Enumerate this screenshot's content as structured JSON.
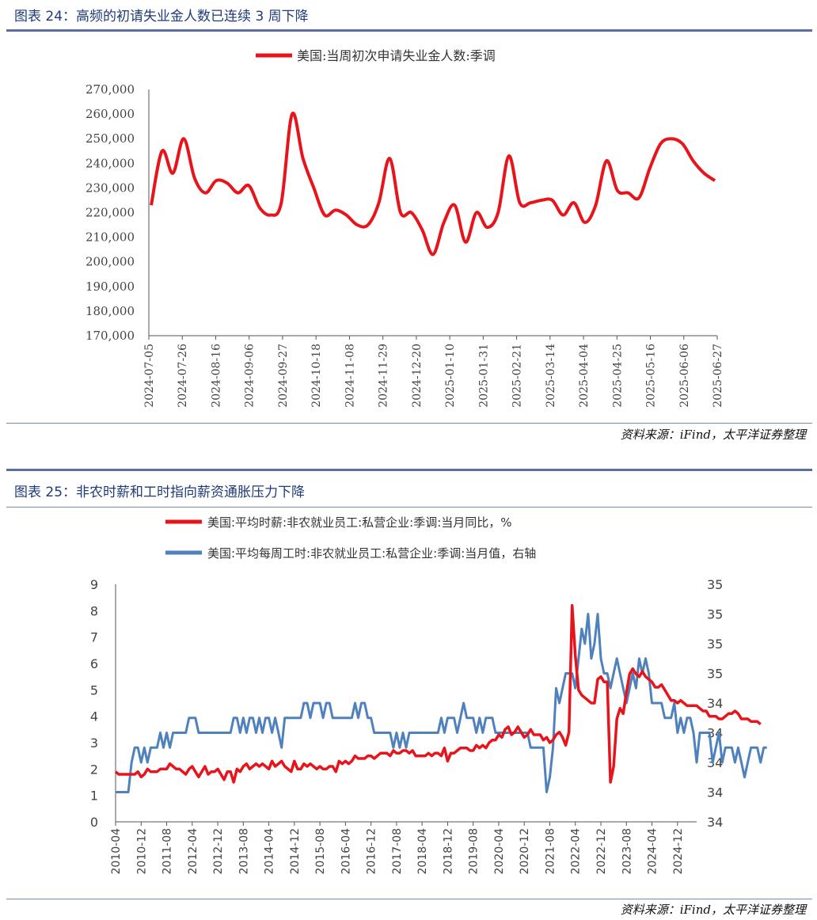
{
  "figures": [
    {
      "title": "图表 24：高频的初请失业金人数已连续 3 周下降",
      "source": "资料来源：iFind，太平洋证券整理"
    },
    {
      "title": "图表 25：非农时薪和工时指向薪资通胀压力下降",
      "source": "资料来源：iFind，太平洋证券整理"
    }
  ],
  "chart_data": [
    {
      "type": "line",
      "legend": [
        "美国:当周初次申请失业金人数:季调"
      ],
      "colors": [
        "#e8141b"
      ],
      "ylim": [
        170000,
        270000
      ],
      "yticks": [
        "170,000",
        "180,000",
        "190,000",
        "200,000",
        "210,000",
        "220,000",
        "230,000",
        "240,000",
        "250,000",
        "260,000",
        "270,000"
      ],
      "xticks": [
        "2024-07-05",
        "2024-07-26",
        "2024-08-16",
        "2024-09-06",
        "2024-09-27",
        "2024-10-18",
        "2024-11-08",
        "2024-11-29",
        "2024-12-20",
        "2025-01-10",
        "2025-01-31",
        "2025-02-21",
        "2025-03-14",
        "2025-04-04",
        "2025-04-25",
        "2025-05-16",
        "2025-06-06",
        "2025-06-27"
      ],
      "series": [
        {
          "name": "美国:当周初次申请失业金人数:季调",
          "values": [
            223000,
            245000,
            236000,
            250000,
            234000,
            228000,
            233000,
            232000,
            228000,
            231000,
            222000,
            219000,
            224000,
            260000,
            242000,
            230000,
            219000,
            221000,
            219000,
            215000,
            215000,
            224000,
            242000,
            220000,
            220000,
            213000,
            203000,
            216000,
            223000,
            208000,
            220000,
            214000,
            220000,
            243000,
            224000,
            224000,
            225000,
            225000,
            219000,
            224000,
            216000,
            223000,
            241000,
            229000,
            228000,
            226000,
            238000,
            248000,
            250000,
            248000,
            241000,
            236000,
            233000
          ]
        }
      ]
    },
    {
      "type": "line",
      "legend": [
        "美国:平均时薪:非农就业员工:私营企业:季调:当月同比，%",
        "美国:平均每周工时:非农就业员工:私营企业:季调:当月值，右轴"
      ],
      "colors": [
        "#e8141b",
        "#4f81bd"
      ],
      "ylim_left": [
        0,
        9
      ],
      "yticks_left": [
        "0",
        "1",
        "2",
        "3",
        "4",
        "5",
        "6",
        "7",
        "8",
        "9"
      ],
      "ylim_right": [
        33.8,
        35.4
      ],
      "yticks_right": [
        "34",
        "34",
        "34",
        "34",
        "34",
        "35",
        "35",
        "35",
        "35"
      ],
      "xticks": [
        "2010-04",
        "2010-12",
        "2011-08",
        "2012-04",
        "2012-12",
        "2013-08",
        "2014-04",
        "2014-12",
        "2015-08",
        "2016-04",
        "2016-12",
        "2017-08",
        "2018-04",
        "2018-12",
        "2019-08",
        "2020-04",
        "2020-12",
        "2021-08",
        "2022-04",
        "2022-12",
        "2023-08",
        "2024-04",
        "2024-12"
      ],
      "x_start": "2010-04",
      "x_end": "2025-06",
      "series": [
        {
          "name": "美国:平均时薪:非农就业员工:私营企业:季调:当月同比，%",
          "axis": "left",
          "monthly_start": "2010-04",
          "values": [
            1.9,
            1.8,
            1.8,
            1.8,
            1.8,
            1.8,
            1.8,
            1.9,
            1.7,
            1.8,
            2.0,
            1.9,
            1.9,
            1.9,
            2.0,
            2.0,
            2.0,
            2.2,
            2.1,
            2.0,
            2.0,
            1.9,
            1.8,
            2.0,
            2.1,
            1.9,
            1.7,
            1.9,
            2.1,
            1.8,
            1.9,
            1.9,
            2.0,
            1.8,
            1.6,
            1.9,
            1.9,
            1.5,
            2.0,
            1.9,
            2.1,
            2.2,
            2.0,
            2.1,
            2.2,
            2.1,
            2.2,
            2.1,
            2.0,
            2.3,
            2.1,
            2.2,
            2.3,
            2.1,
            2.0,
            1.9,
            2.3,
            2.0,
            2.0,
            2.2,
            2.1,
            2.2,
            2.1,
            2.0,
            2.1,
            2.0,
            2.0,
            2.1,
            2.1,
            1.9,
            2.3,
            2.2,
            2.3,
            2.2,
            2.3,
            2.5,
            2.4,
            2.4,
            2.4,
            2.5,
            2.5,
            2.4,
            2.5,
            2.6,
            2.6,
            2.6,
            2.5,
            2.7,
            2.6,
            2.6,
            2.7,
            2.7,
            2.6,
            2.7,
            2.5,
            2.5,
            2.5,
            2.5,
            2.6,
            2.5,
            2.6,
            2.6,
            2.5,
            2.8,
            2.3,
            2.6,
            2.6,
            2.7,
            2.8,
            2.8,
            2.8,
            2.7,
            2.7,
            2.9,
            2.8,
            2.9,
            2.8,
            3.0,
            3.1,
            3.1,
            3.3,
            3.2,
            3.5,
            3.6,
            3.3,
            3.4,
            3.6,
            3.4,
            3.2,
            3.3,
            3.5,
            3.3,
            3.3,
            3.3,
            3.1,
            3.2,
            3.0,
            3.1,
            3.3,
            3.4,
            3.2,
            2.9,
            3.4,
            8.2,
            6.3,
            5.0,
            4.8,
            4.7,
            4.6,
            4.5,
            4.5,
            5.4,
            5.5,
            5.3,
            5.3,
            1.5,
            2.1,
            3.9,
            4.3,
            4.1,
            4.9,
            5.6,
            5.8,
            5.6,
            5.5,
            5.7,
            5.5,
            5.4,
            5.3,
            5.1,
            5.1,
            5.2,
            5.0,
            4.8,
            4.6,
            4.6,
            4.5,
            4.6,
            4.5,
            4.4,
            4.4,
            4.4,
            4.4,
            4.3,
            4.2,
            4.2,
            4.0,
            4.0,
            4.0,
            3.9,
            3.9,
            4.0,
            4.1,
            4.1,
            4.2,
            4.1,
            3.9,
            3.9,
            3.9,
            3.8,
            3.8,
            3.8,
            3.7
          ]
        },
        {
          "name": "美国:平均每周工时:非农就业员工:私营企业:季调:当月值，右轴",
          "axis": "right",
          "monthly_start": "2010-04",
          "values": [
            34.0,
            34.0,
            34.0,
            34.0,
            34.0,
            34.2,
            34.3,
            34.3,
            34.2,
            34.3,
            34.2,
            34.3,
            34.3,
            34.3,
            34.4,
            34.3,
            34.4,
            34.3,
            34.4,
            34.4,
            34.4,
            34.4,
            34.4,
            34.5,
            34.5,
            34.5,
            34.4,
            34.4,
            34.4,
            34.4,
            34.4,
            34.4,
            34.4,
            34.4,
            34.4,
            34.4,
            34.4,
            34.5,
            34.5,
            34.4,
            34.5,
            34.4,
            34.5,
            34.5,
            34.4,
            34.5,
            34.4,
            34.5,
            34.5,
            34.4,
            34.5,
            34.4,
            34.3,
            34.5,
            34.5,
            34.5,
            34.5,
            34.5,
            34.5,
            34.6,
            34.6,
            34.5,
            34.6,
            34.6,
            34.6,
            34.5,
            34.6,
            34.6,
            34.5,
            34.5,
            34.5,
            34.5,
            34.5,
            34.5,
            34.5,
            34.6,
            34.5,
            34.6,
            34.6,
            34.5,
            34.5,
            34.4,
            34.4,
            34.4,
            34.4,
            34.4,
            34.4,
            34.3,
            34.4,
            34.3,
            34.4,
            34.3,
            34.4,
            34.4,
            34.4,
            34.4,
            34.4,
            34.4,
            34.4,
            34.4,
            34.4,
            34.4,
            34.5,
            34.4,
            34.5,
            34.5,
            34.5,
            34.4,
            34.5,
            34.6,
            34.5,
            34.5,
            34.5,
            34.4,
            34.5,
            34.4,
            34.5,
            34.5,
            34.5,
            34.4,
            34.4,
            34.4,
            34.4,
            34.4,
            34.4,
            34.4,
            34.4,
            34.4,
            34.4,
            34.4,
            34.3,
            34.3,
            34.3,
            34.3,
            34.3,
            34.0,
            34.1,
            34.3,
            34.7,
            34.6,
            34.7,
            34.8,
            34.8,
            34.8,
            34.7,
            34.9,
            35.1,
            35.0,
            35.2,
            34.9,
            35.0,
            35.2,
            34.9,
            34.8,
            34.8,
            34.7,
            34.8,
            34.9,
            34.8,
            34.7,
            34.6,
            34.7,
            34.8,
            34.7,
            34.9,
            34.8,
            34.9,
            34.8,
            34.6,
            34.6,
            34.6,
            34.6,
            34.5,
            34.5,
            34.5,
            34.6,
            34.4,
            34.5,
            34.4,
            34.5,
            34.5,
            34.4,
            34.2,
            34.4,
            34.4,
            34.4,
            34.4,
            34.2,
            34.3,
            34.4,
            34.2,
            34.3,
            34.3,
            34.3,
            34.2,
            34.3,
            34.2,
            34.1,
            34.2,
            34.3,
            34.3,
            34.3,
            34.2,
            34.3,
            34.3
          ]
        }
      ]
    }
  ]
}
